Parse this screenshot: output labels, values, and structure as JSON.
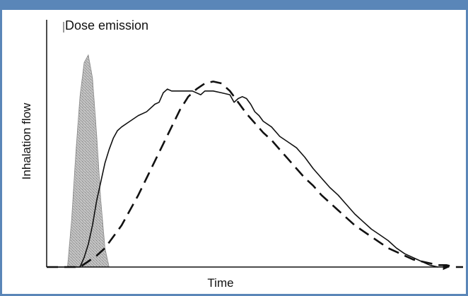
{
  "chart_data": {
    "type": "line",
    "title": "",
    "xlabel": "Time",
    "ylabel": "Inhalation flow",
    "annotations": [
      {
        "text": "Dose emission",
        "at": "dose-peak"
      }
    ],
    "xlim": [
      0,
      100
    ],
    "ylim": [
      0,
      100
    ],
    "grid": false,
    "legend": "none",
    "series": [
      {
        "style": "solid",
        "color": "#111111",
        "x": [
          0,
          8,
          9,
          10,
          11,
          12,
          13,
          14,
          15,
          16,
          17,
          18,
          20,
          22,
          24,
          26,
          27,
          28,
          29,
          30,
          35,
          37,
          38,
          40,
          42,
          44,
          45,
          46,
          47,
          48,
          49,
          50,
          51,
          52,
          54,
          56,
          58,
          60,
          62,
          64,
          66,
          68,
          70,
          72,
          74,
          76,
          78,
          80,
          82,
          84,
          86,
          88,
          90,
          92,
          94
        ],
        "y": [
          0,
          0,
          5,
          12,
          22,
          35,
          45,
          55,
          62,
          68,
          72,
          74,
          77,
          80,
          82,
          86,
          87,
          92,
          94,
          93,
          93,
          91,
          93,
          93,
          92,
          91,
          87,
          89,
          90,
          89,
          86,
          82,
          80,
          77,
          74,
          69,
          66,
          63,
          58,
          52,
          47,
          42,
          38,
          33,
          28,
          24,
          20,
          17,
          14,
          10,
          7,
          5,
          3,
          1,
          0
        ]
      },
      {
        "style": "dashed",
        "color": "#111111",
        "x": [
          0,
          8,
          10,
          12,
          14,
          16,
          18,
          20,
          22,
          24,
          26,
          28,
          30,
          32,
          34,
          36,
          38,
          40,
          42,
          44,
          46,
          48,
          50,
          52,
          54,
          56,
          58,
          60,
          62,
          64,
          66,
          68,
          70,
          72,
          74,
          76,
          78,
          80,
          82,
          84,
          86,
          88,
          90,
          92,
          94,
          96,
          98,
          100
        ],
        "y": [
          0,
          0,
          3,
          6,
          10,
          16,
          22,
          30,
          38,
          47,
          56,
          65,
          74,
          83,
          90,
          94,
          97,
          98,
          97,
          93,
          87,
          81,
          76,
          71,
          67,
          62,
          57,
          52,
          47,
          43,
          38,
          34,
          30,
          26,
          22,
          19,
          16,
          13,
          10,
          8,
          6,
          4,
          3,
          2,
          1,
          1,
          0,
          0
        ]
      }
    ],
    "dose_emission": {
      "color": "#a0a0a0",
      "x": [
        5,
        6,
        7,
        8,
        9,
        10,
        11,
        12,
        13,
        14,
        15
      ],
      "y": [
        0,
        25,
        60,
        90,
        108,
        112,
        100,
        70,
        35,
        10,
        0
      ]
    }
  }
}
